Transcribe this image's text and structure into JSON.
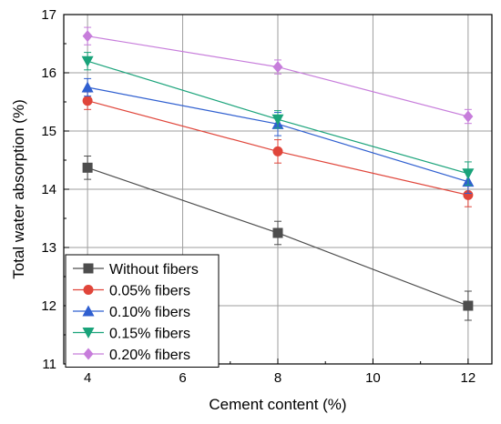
{
  "chart_data": {
    "type": "line",
    "title": "",
    "xlabel": "Cement content (%)",
    "ylabel": "Total water absorption (%)",
    "xlim": [
      3.5,
      12.5
    ],
    "ylim": [
      11,
      17
    ],
    "xticks": [
      4,
      6,
      8,
      10,
      12
    ],
    "yticks": [
      11,
      12,
      13,
      14,
      15,
      16,
      17
    ],
    "grid": true,
    "legend_position": "bottom-left",
    "x": [
      4,
      8,
      12
    ],
    "series": [
      {
        "name": "Without fibers",
        "color": "#4d4d4d",
        "marker": "square",
        "values": [
          14.37,
          13.25,
          12.0
        ],
        "errors": [
          0.2,
          0.2,
          0.25
        ]
      },
      {
        "name": "0.05% fibers",
        "color": "#e0453a",
        "marker": "circle",
        "values": [
          15.52,
          14.65,
          13.9
        ],
        "errors": [
          0.15,
          0.2,
          0.2
        ]
      },
      {
        "name": "0.10% fibers",
        "color": "#2f5fd0",
        "marker": "triangle-up",
        "values": [
          15.75,
          15.12,
          14.13
        ],
        "errors": [
          0.15,
          0.2,
          0.2
        ]
      },
      {
        "name": "0.15% fibers",
        "color": "#1aa37a",
        "marker": "triangle-down",
        "values": [
          16.2,
          15.2,
          14.27
        ],
        "errors": [
          0.15,
          0.15,
          0.2
        ]
      },
      {
        "name": "0.20% fibers",
        "color": "#c77ddb",
        "marker": "diamond",
        "values": [
          16.63,
          16.1,
          15.25
        ],
        "errors": [
          0.15,
          0.12,
          0.12
        ]
      }
    ]
  }
}
